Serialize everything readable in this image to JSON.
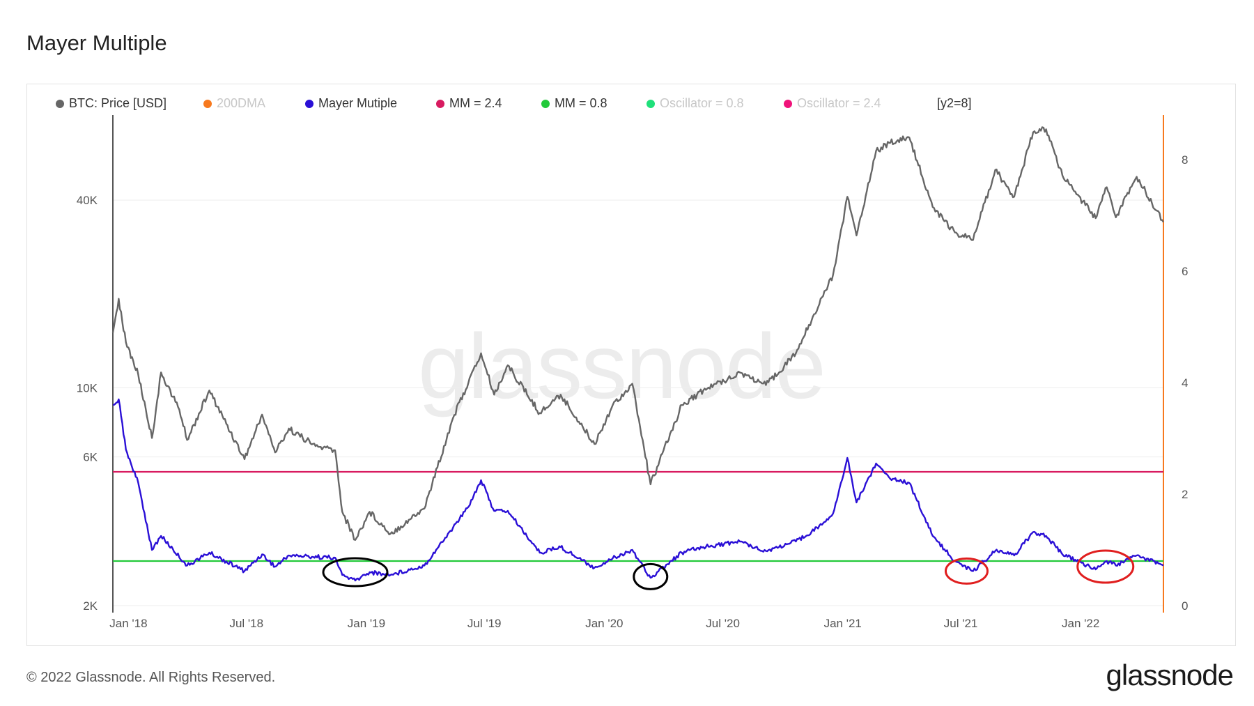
{
  "title": "Mayer Multiple",
  "watermark": "glassnode",
  "footer": {
    "copyright": "© 2022 Glassnode. All Rights Reserved.",
    "logo": "glassnode"
  },
  "legend": {
    "items": [
      {
        "label": "BTC: Price [USD]",
        "color": "#666666",
        "faded": false
      },
      {
        "label": "200DMA",
        "color": "#f7791e",
        "faded": true
      },
      {
        "label": "Mayer Mutiple",
        "color": "#2a0fd6",
        "faded": false
      },
      {
        "label": "MM = 2.4",
        "color": "#d81b60",
        "faded": false
      },
      {
        "label": "MM = 0.8",
        "color": "#22c93a",
        "faded": false
      },
      {
        "label": "Oscillator = 0.8",
        "color": "#1fe07a",
        "faded": true
      },
      {
        "label": "Oscillator = 2.4",
        "color": "#f0127a",
        "faded": true
      }
    ],
    "y2_note": "[y2=8]"
  },
  "chart_data": {
    "type": "line",
    "x_axis": {
      "range": [
        "2017-12-08",
        "2022-05-08"
      ],
      "ticks": [
        "Jan '18",
        "Jul '18",
        "Jan '19",
        "Jul '19",
        "Jan '20",
        "Jul '20",
        "Jan '21",
        "Jul '21",
        "Jan '22"
      ]
    },
    "y_axis_left": {
      "scale": "log",
      "ticks": [
        "2K",
        "6K",
        "10K",
        "40K"
      ],
      "range": [
        2000,
        75000
      ]
    },
    "y_axis_right": {
      "scale": "linear",
      "ticks": [
        "0",
        "2",
        "4",
        "6",
        "8"
      ],
      "range": [
        0,
        8.8
      ]
    },
    "series": [
      {
        "name": "BTC: Price [USD]",
        "color": "#666666",
        "axis": "left",
        "points": [
          [
            "2017-12-08",
            15000
          ],
          [
            "2017-12-17",
            19300
          ],
          [
            "2017-12-28",
            14000
          ],
          [
            "2018-01-16",
            11000
          ],
          [
            "2018-02-06",
            6900
          ],
          [
            "2018-02-20",
            11200
          ],
          [
            "2018-03-20",
            8500
          ],
          [
            "2018-04-01",
            6800
          ],
          [
            "2018-05-05",
            9800
          ],
          [
            "2018-06-28",
            5900
          ],
          [
            "2018-07-25",
            8200
          ],
          [
            "2018-08-14",
            6200
          ],
          [
            "2018-09-04",
            7400
          ],
          [
            "2018-10-15",
            6500
          ],
          [
            "2018-11-14",
            6300
          ],
          [
            "2018-11-25",
            4000
          ],
          [
            "2018-12-15",
            3250
          ],
          [
            "2019-01-06",
            4000
          ],
          [
            "2019-02-07",
            3400
          ],
          [
            "2019-03-31",
            4100
          ],
          [
            "2019-05-14",
            8000
          ],
          [
            "2019-06-26",
            12900
          ],
          [
            "2019-07-16",
            9500
          ],
          [
            "2019-08-06",
            11800
          ],
          [
            "2019-09-24",
            8300
          ],
          [
            "2019-10-26",
            9500
          ],
          [
            "2019-12-17",
            6600
          ],
          [
            "2020-01-14",
            8800
          ],
          [
            "2020-02-13",
            10300
          ],
          [
            "2020-03-12",
            4900
          ],
          [
            "2020-04-29",
            8800
          ],
          [
            "2020-06-01",
            9800
          ],
          [
            "2020-07-27",
            11200
          ],
          [
            "2020-09-05",
            10200
          ],
          [
            "2020-10-21",
            12900
          ],
          [
            "2020-11-30",
            19500
          ],
          [
            "2020-12-17",
            23000
          ],
          [
            "2021-01-08",
            41000
          ],
          [
            "2021-01-22",
            30800
          ],
          [
            "2021-02-21",
            57500
          ],
          [
            "2021-03-13",
            61000
          ],
          [
            "2021-04-13",
            63500
          ],
          [
            "2021-05-19",
            38000
          ],
          [
            "2021-06-22",
            31500
          ],
          [
            "2021-07-20",
            29800
          ],
          [
            "2021-08-23",
            50000
          ],
          [
            "2021-09-21",
            41000
          ],
          [
            "2021-10-20",
            66000
          ],
          [
            "2021-11-09",
            67500
          ],
          [
            "2021-12-04",
            48000
          ],
          [
            "2022-01-24",
            35000
          ],
          [
            "2022-02-10",
            44000
          ],
          [
            "2022-02-24",
            35200
          ],
          [
            "2022-03-28",
            47500
          ],
          [
            "2022-05-08",
            34000
          ]
        ]
      },
      {
        "name": "Mayer Mutiple",
        "color": "#2a0fd6",
        "axis": "right",
        "points": [
          [
            "2017-12-08",
            3.6
          ],
          [
            "2017-12-17",
            3.7
          ],
          [
            "2017-12-28",
            2.8
          ],
          [
            "2018-01-16",
            2.2
          ],
          [
            "2018-02-06",
            1.0
          ],
          [
            "2018-02-20",
            1.25
          ],
          [
            "2018-04-01",
            0.72
          ],
          [
            "2018-05-05",
            0.95
          ],
          [
            "2018-06-28",
            0.62
          ],
          [
            "2018-07-25",
            0.92
          ],
          [
            "2018-08-14",
            0.7
          ],
          [
            "2018-09-04",
            0.9
          ],
          [
            "2018-11-14",
            0.86
          ],
          [
            "2018-11-25",
            0.55
          ],
          [
            "2018-12-15",
            0.45
          ],
          [
            "2019-01-06",
            0.6
          ],
          [
            "2019-02-07",
            0.55
          ],
          [
            "2019-03-31",
            0.72
          ],
          [
            "2019-05-14",
            1.4
          ],
          [
            "2019-06-05",
            1.75
          ],
          [
            "2019-06-26",
            2.25
          ],
          [
            "2019-07-16",
            1.7
          ],
          [
            "2019-08-06",
            1.7
          ],
          [
            "2019-09-24",
            0.95
          ],
          [
            "2019-10-26",
            1.05
          ],
          [
            "2019-12-17",
            0.68
          ],
          [
            "2020-01-14",
            0.85
          ],
          [
            "2020-02-13",
            1.0
          ],
          [
            "2020-03-12",
            0.5
          ],
          [
            "2020-04-29",
            0.95
          ],
          [
            "2020-06-01",
            1.05
          ],
          [
            "2020-07-27",
            1.15
          ],
          [
            "2020-09-05",
            0.98
          ],
          [
            "2020-10-21",
            1.15
          ],
          [
            "2020-11-30",
            1.45
          ],
          [
            "2020-12-17",
            1.65
          ],
          [
            "2021-01-08",
            2.65
          ],
          [
            "2021-01-22",
            1.85
          ],
          [
            "2021-02-21",
            2.55
          ],
          [
            "2021-03-13",
            2.3
          ],
          [
            "2021-04-13",
            2.2
          ],
          [
            "2021-05-19",
            1.25
          ],
          [
            "2021-06-22",
            0.8
          ],
          [
            "2021-07-20",
            0.62
          ],
          [
            "2021-08-23",
            0.98
          ],
          [
            "2021-09-21",
            0.9
          ],
          [
            "2021-10-20",
            1.32
          ],
          [
            "2021-11-09",
            1.25
          ],
          [
            "2021-12-04",
            0.92
          ],
          [
            "2022-01-24",
            0.65
          ],
          [
            "2022-02-10",
            0.8
          ],
          [
            "2022-02-24",
            0.72
          ],
          [
            "2022-03-28",
            0.9
          ],
          [
            "2022-05-08",
            0.72
          ]
        ]
      },
      {
        "name": "MM = 2.4",
        "color": "#d81b60",
        "axis": "right",
        "constant": 2.4
      },
      {
        "name": "MM = 0.8",
        "color": "#22c93a",
        "axis": "right",
        "constant": 0.8
      }
    ],
    "annotations": [
      {
        "type": "ellipse",
        "color": "#000000",
        "at": [
          "2018-12-15",
          0.6
        ]
      },
      {
        "type": "ellipse",
        "color": "#000000",
        "at": [
          "2020-03-12",
          0.52
        ]
      },
      {
        "type": "ellipse",
        "color": "#e01e1e",
        "at": [
          "2021-07-10",
          0.62
        ]
      },
      {
        "type": "ellipse",
        "color": "#e01e1e",
        "at": [
          "2022-02-08",
          0.7
        ]
      }
    ]
  }
}
